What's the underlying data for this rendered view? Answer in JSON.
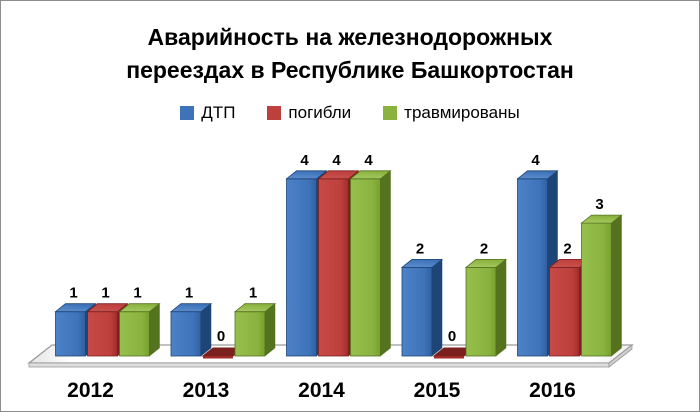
{
  "window": {
    "background_color": "#ffffff",
    "border_color": "#8c8c8c"
  },
  "title": {
    "line1": "Аварийность на железнодорожных",
    "line2": "переездах в Республике Башкортостан"
  },
  "chart_data": {
    "type": "bar",
    "style": "3d-clustered-column",
    "title": "Аварийность на железнодорожных переездах в Республике Башкортостан",
    "categories": [
      "2012",
      "2013",
      "2014",
      "2015",
      "2016"
    ],
    "series": [
      {
        "name": "ДТП",
        "values": [
          1,
          1,
          4,
          2,
          4
        ],
        "color": "#3E73B9",
        "color_front_light": "#4C82C8",
        "color_front_dark": "#2F5FA0",
        "color_top": "#5E8FD0",
        "color_side": "#1E4577"
      },
      {
        "name": "погибли",
        "values": [
          1,
          0,
          4,
          0,
          2
        ],
        "color": "#BE403D",
        "color_front_light": "#C74A46",
        "color_front_dark": "#A02C2A",
        "color_top": "#CA5450",
        "color_side": "#7C201F"
      },
      {
        "name": "травмированы",
        "values": [
          1,
          1,
          4,
          2,
          3
        ],
        "color": "#8AB23F",
        "color_front_light": "#97BF4D",
        "color_front_dark": "#76A02F",
        "color_top": "#A8CB62",
        "color_side": "#55721F"
      }
    ],
    "ylim": [
      0,
      4
    ],
    "data_labels": true,
    "legend_position": "top",
    "gridlines": false,
    "floor_color": "#ffffff",
    "floor_edge_color": "#9a9a9a"
  }
}
